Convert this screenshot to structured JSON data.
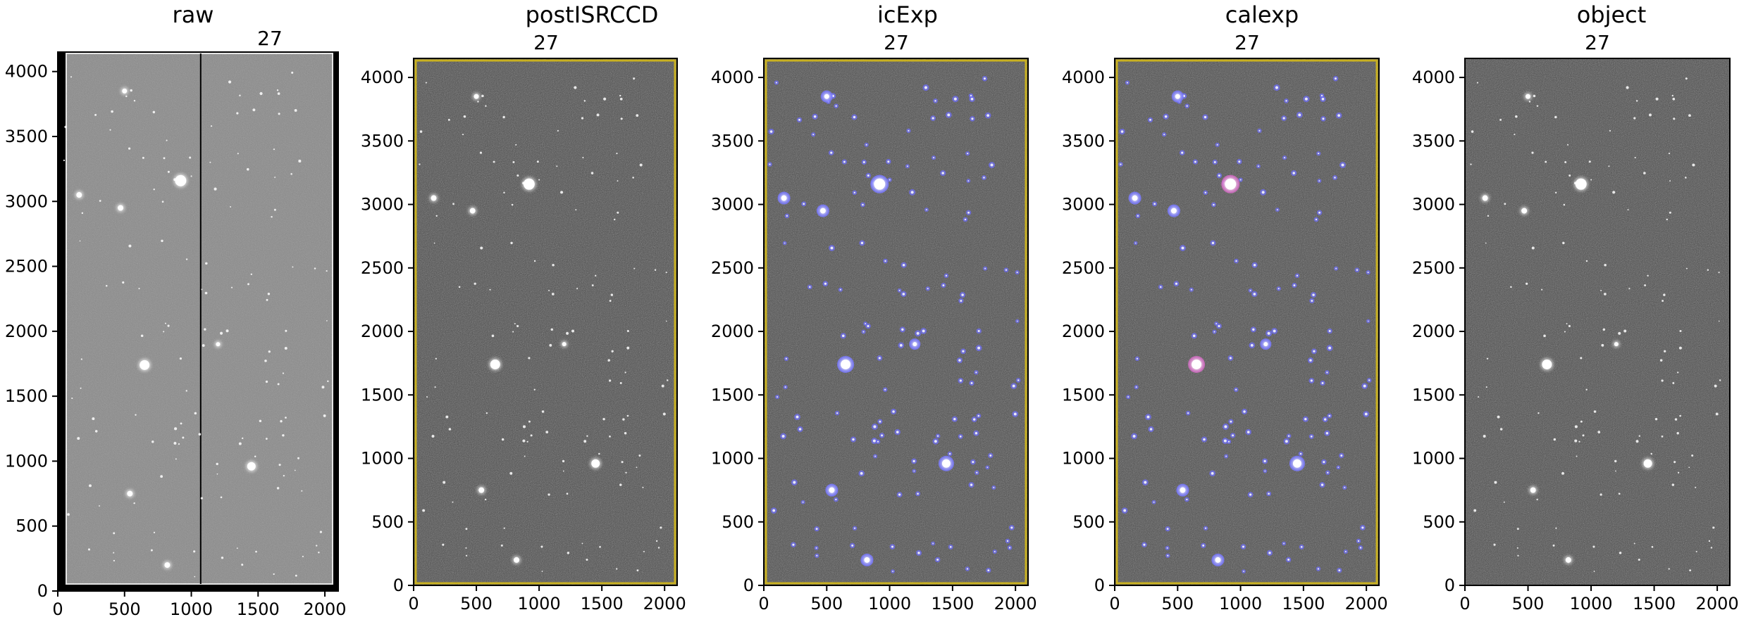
{
  "panels": [
    {
      "title": "raw",
      "ccd": "27",
      "style": "raw",
      "x_ticks": [
        "0",
        "500",
        "1000",
        "1500",
        "2000"
      ],
      "y_ticks": [
        "0",
        "500",
        "1000",
        "1500",
        "2000",
        "2500",
        "3000",
        "3500",
        "4000"
      ]
    },
    {
      "title": "postISRCCD",
      "ccd": "27",
      "style": "postisr",
      "x_ticks": [
        "0",
        "500",
        "1000",
        "1500",
        "2000"
      ],
      "y_ticks": [
        "0",
        "500",
        "1000",
        "1500",
        "2000",
        "2500",
        "3000",
        "3500",
        "4000"
      ]
    },
    {
      "title": "icExp",
      "ccd": "27",
      "style": "icexp",
      "x_ticks": [
        "0",
        "500",
        "1000",
        "1500",
        "2000"
      ],
      "y_ticks": [
        "0",
        "500",
        "1000",
        "1500",
        "2000",
        "2500",
        "3000",
        "3500",
        "4000"
      ]
    },
    {
      "title": "calexp",
      "ccd": "27",
      "style": "calexp",
      "x_ticks": [
        "0",
        "500",
        "1000",
        "1500",
        "2000"
      ],
      "y_ticks": [
        "0",
        "500",
        "1000",
        "1500",
        "2000",
        "2500",
        "3000",
        "3500",
        "4000"
      ]
    },
    {
      "title": "object",
      "ccd": "27",
      "style": "object",
      "x_ticks": [
        "0",
        "500",
        "1000",
        "1500",
        "2000"
      ],
      "y_ticks": [
        "0",
        "500",
        "1000",
        "1500",
        "2000",
        "2500",
        "3000",
        "3500",
        "4000"
      ]
    }
  ],
  "colors": {
    "raw_background": "#8a8a8a",
    "dark_background": "#4a4a4a",
    "star": "#ffffff",
    "detection_mask": "#6f6fff",
    "calib_mask": "#d060c0",
    "edge_mask": "#c8b020",
    "frame": "#000000"
  }
}
